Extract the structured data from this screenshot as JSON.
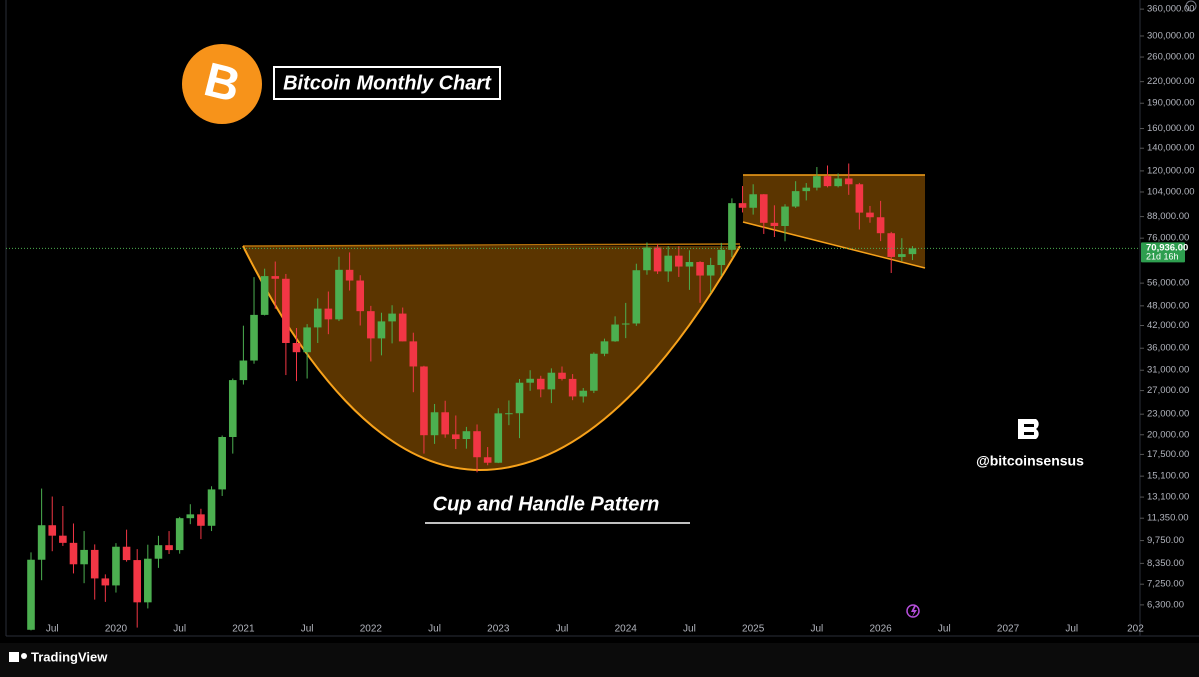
{
  "chart_data": {
    "type": "candlestick",
    "title": "Bitcoin Monthly Chart",
    "annotation": "Cup and Handle Pattern",
    "watermark": "@bitcoinsensus",
    "brand": "TradingView",
    "log_scale": true,
    "up_color": "#4caf50",
    "down_color": "#f23645",
    "categories": [
      null,
      null,
      "Jul",
      null,
      null,
      null,
      null,
      null,
      "2020",
      null,
      null,
      null,
      null,
      null,
      "Jul",
      null,
      null,
      null,
      null,
      null,
      "2021",
      null,
      null,
      null,
      null,
      null,
      "Jul",
      null,
      null,
      null,
      null,
      null,
      "2022",
      null,
      null,
      null,
      null,
      null,
      "Jul",
      null,
      null,
      null,
      null,
      null,
      "2023",
      null,
      null,
      null,
      null,
      null,
      "Jul",
      null,
      null,
      null,
      null,
      null,
      "2024",
      null,
      null,
      null,
      null,
      null,
      "Jul",
      null,
      null,
      null,
      null,
      null,
      "2025",
      null,
      null,
      null,
      null,
      null,
      "Jul",
      null,
      null,
      null,
      null,
      null,
      "2026",
      null,
      null,
      null,
      null,
      null,
      "Jul",
      null,
      null,
      null,
      null,
      null,
      "2027",
      null,
      null,
      null,
      null,
      null,
      "Jul",
      null,
      null,
      null,
      null,
      null,
      "202"
    ],
    "open": [
      5320,
      8560,
      10820,
      10080,
      9600,
      8300,
      9150,
      7540,
      7190,
      9350,
      8540,
      6410,
      8620,
      9450,
      9140,
      11350,
      11650,
      10780,
      13800,
      19700,
      28990,
      33110,
      45140,
      58740,
      57690,
      37300,
      35040,
      41460,
      47100,
      43790,
      61300,
      57000,
      46300,
      38480,
      43190,
      45540,
      37710,
      31800,
      19940,
      23300,
      20050,
      19430,
      20490,
      17170,
      16540,
      23130,
      23150,
      28480,
      29250,
      27220,
      30480,
      29230,
      25940,
      26970,
      34670,
      37720,
      42280,
      42580,
      61130,
      71330,
      60640,
      67490,
      62680,
      64630,
      58970,
      63330,
      70220,
      96400,
      93430,
      102400,
      84350,
      82550,
      94200,
      104600,
      107100,
      115800,
      108200,
      114000,
      109600,
      90400,
      87600,
      78600,
      66900,
      68200,
      null,
      null,
      null,
      null,
      null,
      null,
      null,
      null,
      null,
      null,
      null,
      null,
      null,
      null,
      null,
      null,
      null,
      null,
      null,
      null,
      null
    ],
    "high": [
      9000,
      13880,
      13150,
      12330,
      10950,
      10400,
      9500,
      7750,
      9580,
      10500,
      9200,
      9480,
      10070,
      10400,
      11450,
      12480,
      12100,
      14100,
      19900,
      29300,
      41950,
      58330,
      61780,
      64850,
      59600,
      41300,
      42400,
      50500,
      52900,
      67000,
      69000,
      59100,
      47990,
      45800,
      48200,
      47450,
      40000,
      31950,
      24650,
      25200,
      22800,
      21100,
      21450,
      18400,
      23950,
      25250,
      29200,
      31000,
      29850,
      31400,
      31800,
      30200,
      27480,
      35000,
      38420,
      44700,
      48970,
      63900,
      73800,
      72800,
      71980,
      71950,
      70000,
      65000,
      66500,
      73600,
      99600,
      108300,
      109600,
      102500,
      95000,
      95700,
      111900,
      110500,
      123200,
      124500,
      117900,
      126200,
      110600,
      94600,
      97900,
      79300,
      76000,
      72000,
      null,
      null,
      null,
      null,
      null,
      null,
      null,
      null,
      null,
      null,
      null,
      null,
      null,
      null,
      null,
      null,
      null,
      null,
      null,
      null,
      null
    ],
    "low": [
      5300,
      7450,
      9070,
      9400,
      7800,
      7300,
      6530,
      6430,
      6850,
      8450,
      5400,
      6150,
      8100,
      8900,
      8920,
      10900,
      9850,
      10400,
      13200,
      17600,
      28130,
      32400,
      44960,
      47040,
      30000,
      28800,
      29300,
      37300,
      39600,
      43290,
      53250,
      42000,
      32900,
      34300,
      37200,
      37700,
      26700,
      17600,
      18800,
      19600,
      18150,
      18200,
      15500,
      16260,
      16500,
      21350,
      19550,
      26950,
      25800,
      24800,
      28900,
      25300,
      24900,
      26550,
      34100,
      37600,
      38550,
      41900,
      59300,
      59600,
      56500,
      58400,
      53500,
      49000,
      52500,
      58900,
      66800,
      90500,
      89200,
      78200,
      76600,
      74400,
      93300,
      98200,
      105100,
      107300,
      107300,
      102000,
      80600,
      84400,
      74500,
      60000,
      65000,
      65500,
      null,
      null,
      null,
      null,
      null,
      null,
      null,
      null,
      null,
      null,
      null,
      null,
      null,
      null,
      null,
      null,
      null,
      null,
      null,
      null,
      null
    ],
    "close": [
      8560,
      10820,
      10080,
      9600,
      8300,
      9150,
      7540,
      7190,
      9350,
      8540,
      6410,
      8620,
      9450,
      9140,
      11350,
      11650,
      10780,
      13800,
      19700,
      28990,
      33110,
      45140,
      58740,
      57690,
      37300,
      35040,
      41460,
      47100,
      43790,
      61300,
      57000,
      46300,
      38480,
      43190,
      45540,
      37710,
      31800,
      19940,
      23300,
      20050,
      19430,
      20490,
      17170,
      16540,
      23130,
      23150,
      28480,
      29250,
      27220,
      30480,
      29230,
      25940,
      26970,
      34670,
      37720,
      42280,
      42580,
      61130,
      71330,
      60640,
      67490,
      62680,
      64630,
      58970,
      63330,
      70220,
      96400,
      93430,
      102400,
      84350,
      82550,
      94200,
      104600,
      107100,
      115800,
      108200,
      114000,
      109600,
      90400,
      87600,
      78600,
      66900,
      68200,
      70936,
      null,
      null,
      null,
      null,
      null,
      null,
      null,
      null,
      null,
      null,
      null,
      null,
      null,
      null,
      null,
      null,
      null,
      null,
      null,
      null,
      null
    ],
    "last_price": {
      "value": 70936,
      "label": "70,936.00"
    },
    "countdown": "21d 16h",
    "ylim": [
      5100,
      383000
    ],
    "yticks": [
      {
        "value": 360000,
        "label": "360,000.00"
      },
      {
        "value": 300000,
        "label": "300,000.00"
      },
      {
        "value": 260000,
        "label": "260,000.00"
      },
      {
        "value": 220000,
        "label": "220,000.00"
      },
      {
        "value": 190000,
        "label": "190,000.00"
      },
      {
        "value": 160000,
        "label": "160,000.00"
      },
      {
        "value": 140000,
        "label": "140,000.00"
      },
      {
        "value": 120000,
        "label": "120,000.00"
      },
      {
        "value": 104000,
        "label": "104,000.00"
      },
      {
        "value": 88000,
        "label": "88,000.00"
      },
      {
        "value": 76000,
        "label": "76,000.00"
      },
      {
        "value": 56000,
        "label": "56,000.00"
      },
      {
        "value": 48000,
        "label": "48,000.00"
      },
      {
        "value": 42000,
        "label": "42,000.00"
      },
      {
        "value": 36000,
        "label": "36,000.00"
      },
      {
        "value": 31000,
        "label": "31,000.00"
      },
      {
        "value": 27000,
        "label": "27,000.00"
      },
      {
        "value": 23000,
        "label": "23,000.00"
      },
      {
        "value": 20000,
        "label": "20,000.00"
      },
      {
        "value": 17500,
        "label": "17,500.00"
      },
      {
        "value": 15100,
        "label": "15,100.00"
      },
      {
        "value": 13100,
        "label": "13,100.00"
      },
      {
        "value": 11350,
        "label": "11,350.00"
      },
      {
        "value": 9750,
        "label": "9,750.00"
      },
      {
        "value": 8350,
        "label": "8,350.00"
      },
      {
        "value": 7250,
        "label": "7,250.00"
      },
      {
        "value": 6300,
        "label": "6,300.00"
      }
    ]
  }
}
